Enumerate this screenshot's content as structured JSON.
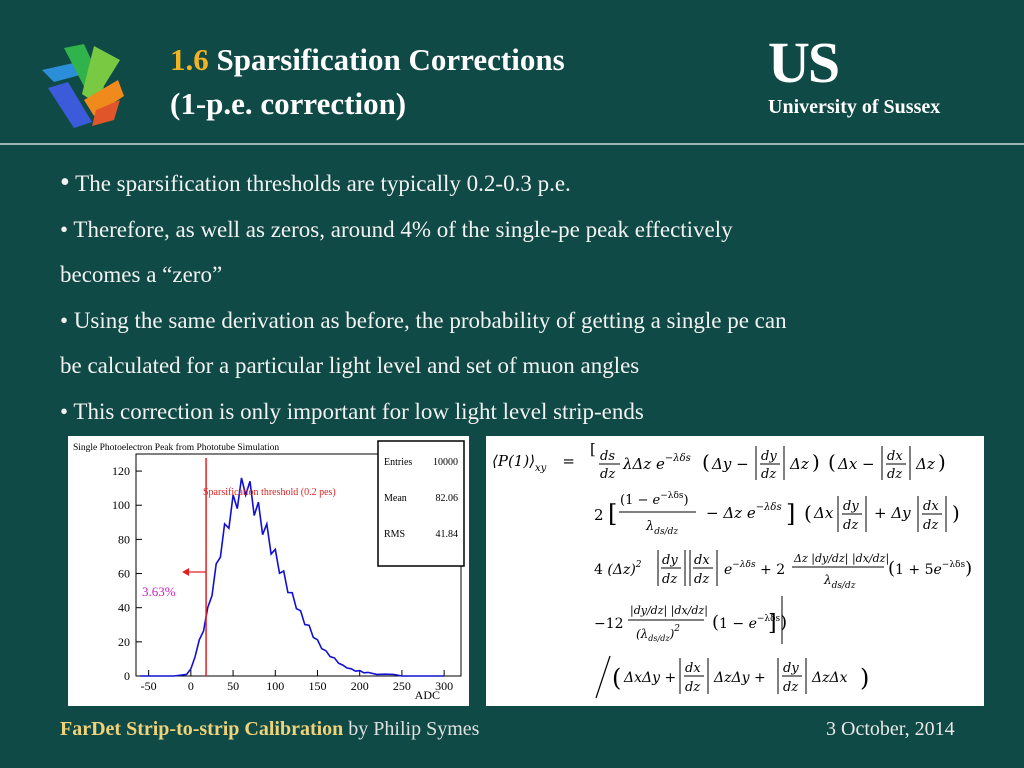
{
  "header": {
    "title_number": "1.6",
    "title_line1": "Sparsification Corrections",
    "title_line2": "(1-p.e. correction)",
    "university_mark": "US",
    "university_name": "University of Sussex"
  },
  "bullets": [
    "The sparsification thresholds are typically 0.2-0.3 p.e.",
    "Therefore, as well as zeros, around 4% of the single-pe peak effectively",
    "becomes a “zero”",
    "Using the same derivation as before, the probability of getting a single pe can",
    "be calculated for a particular light level and set of muon angles",
    "This correction is only important for low light level strip-ends"
  ],
  "chart": {
    "title": "Single Photoelectron Peak from Phototube Simulation",
    "threshold_label": "Sparsification threshold (0.2 pes)",
    "percent_label": "3.63%",
    "xlabel": "ADC",
    "stats": [
      {
        "label": "Entries",
        "value": "10000"
      },
      {
        "label": "Mean",
        "value": "82.06"
      },
      {
        "label": "RMS",
        "value": "41.84"
      }
    ]
  },
  "chart_data": {
    "type": "line",
    "title": "Single Photoelectron Peak from Phototube Simulation",
    "xlabel": "ADC",
    "ylabel": "",
    "xlim": [
      -65,
      320
    ],
    "ylim": [
      0,
      130
    ],
    "xticks": [
      -50,
      0,
      50,
      100,
      150,
      200,
      250,
      300
    ],
    "yticks": [
      0,
      20,
      40,
      60,
      80,
      100,
      120
    ],
    "threshold_x": 18,
    "series": [
      {
        "x": [
          -60,
          -40,
          -20,
          -5,
          0,
          5,
          10,
          15,
          20,
          25,
          30,
          35,
          40,
          45,
          50,
          55,
          60,
          65,
          70,
          75,
          80,
          85,
          90,
          95,
          100,
          105,
          110,
          115,
          120,
          125,
          130,
          135,
          140,
          145,
          150,
          155,
          160,
          165,
          170,
          175,
          180,
          185,
          190,
          195,
          200,
          205,
          210,
          220,
          230,
          240,
          250,
          260,
          280,
          300
        ],
        "y": [
          0,
          0,
          0,
          1,
          4,
          12,
          20,
          28,
          38,
          50,
          62,
          74,
          84,
          92,
          100,
          104,
          110,
          112,
          108,
          100,
          96,
          88,
          84,
          76,
          70,
          64,
          58,
          52,
          46,
          42,
          36,
          32,
          28,
          24,
          20,
          17,
          14,
          12,
          10,
          8,
          6,
          5,
          4,
          3,
          3,
          2,
          2,
          1,
          1,
          1,
          0,
          0,
          0,
          0
        ]
      }
    ],
    "grid": false,
    "legend": "none"
  },
  "footer": {
    "project": "FarDet Strip-to-strip Calibration",
    "author": "by Philip Symes",
    "date": "3 October, 2014"
  },
  "colors": {
    "background": "#0f4a46",
    "title_number": "#f0b323",
    "footer_project": "#f0d27a",
    "histogram": "#1010d0",
    "threshold": "#e02020",
    "percent_label": "#d020c0"
  }
}
